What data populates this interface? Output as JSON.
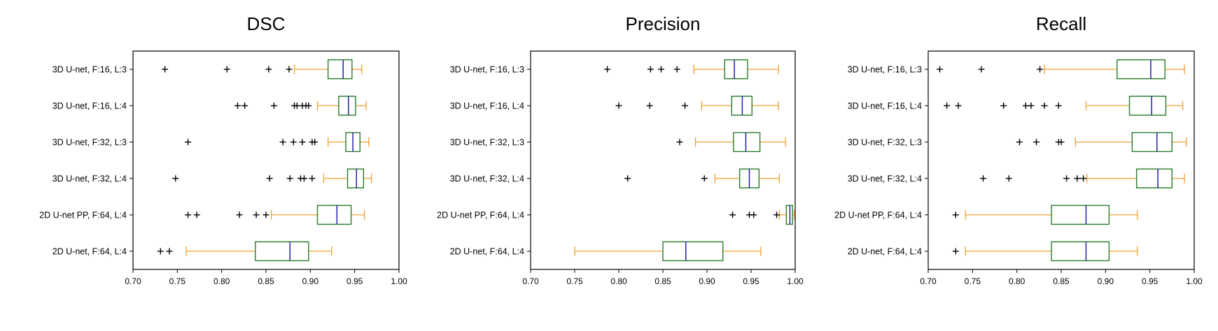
{
  "colors": {
    "box": "#2a7a2a",
    "median": "#2222a0",
    "whisker": "#f0a030",
    "axis": "#000000",
    "flier": "#000000"
  },
  "chart_data": [
    {
      "type": "boxplot",
      "orientation": "horizontal",
      "title": "DSC",
      "xlim": [
        0.7,
        1.0
      ],
      "xticks": [
        "0.70",
        "0.75",
        "0.80",
        "0.85",
        "0.90",
        "0.95",
        "1.00"
      ],
      "grid": false,
      "series": [
        {
          "name": "3D U-net, F:16, L:3",
          "whislo": 0.882,
          "q1": 0.92,
          "med": 0.937,
          "q3": 0.947,
          "whishi": 0.958,
          "fliers": [
            0.736,
            0.806,
            0.853,
            0.876
          ]
        },
        {
          "name": "3D U-net, F:16, L:4",
          "whislo": 0.908,
          "q1": 0.932,
          "med": 0.943,
          "q3": 0.951,
          "whishi": 0.963,
          "fliers": [
            0.818,
            0.826,
            0.859,
            0.882,
            0.885,
            0.891,
            0.895,
            0.898
          ]
        },
        {
          "name": "3D U-net, F:32, L:3",
          "whislo": 0.92,
          "q1": 0.94,
          "med": 0.948,
          "q3": 0.956,
          "whishi": 0.966,
          "fliers": [
            0.762,
            0.869,
            0.881,
            0.891,
            0.902,
            0.905
          ]
        },
        {
          "name": "3D U-net, F:32, L:4",
          "whislo": 0.915,
          "q1": 0.942,
          "med": 0.952,
          "q3": 0.96,
          "whishi": 0.969,
          "fliers": [
            0.748,
            0.854,
            0.877,
            0.889,
            0.893,
            0.902
          ]
        },
        {
          "name": "2D U-net PP, F:64, L:4",
          "whislo": 0.856,
          "q1": 0.908,
          "med": 0.93,
          "q3": 0.946,
          "whishi": 0.961,
          "fliers": [
            0.762,
            0.772,
            0.82,
            0.839,
            0.85
          ]
        },
        {
          "name": "2D U-net, F:64, L:4",
          "whislo": 0.76,
          "q1": 0.838,
          "med": 0.877,
          "q3": 0.898,
          "whishi": 0.924,
          "fliers": [
            0.731,
            0.741
          ]
        }
      ]
    },
    {
      "type": "boxplot",
      "orientation": "horizontal",
      "title": "Precision",
      "xlim": [
        0.7,
        1.0
      ],
      "xticks": [
        "0.70",
        "0.75",
        "0.80",
        "0.85",
        "0.90",
        "0.95",
        "1.00"
      ],
      "grid": false,
      "series": [
        {
          "name": "3D U-net, F:16, L:3",
          "whislo": 0.885,
          "q1": 0.92,
          "med": 0.931,
          "q3": 0.946,
          "whishi": 0.981,
          "fliers": [
            0.787,
            0.836,
            0.848,
            0.866
          ]
        },
        {
          "name": "3D U-net, F:16, L:4",
          "whislo": 0.894,
          "q1": 0.928,
          "med": 0.94,
          "q3": 0.951,
          "whishi": 0.981,
          "fliers": [
            0.8,
            0.835,
            0.875
          ]
        },
        {
          "name": "3D U-net, F:32, L:3",
          "whislo": 0.887,
          "q1": 0.93,
          "med": 0.944,
          "q3": 0.96,
          "whishi": 0.989,
          "fliers": [
            0.869
          ]
        },
        {
          "name": "3D U-net, F:32, L:4",
          "whislo": 0.909,
          "q1": 0.937,
          "med": 0.948,
          "q3": 0.959,
          "whishi": 0.982,
          "fliers": [
            0.81,
            0.897
          ]
        },
        {
          "name": "2D U-net PP, F:64, L:4",
          "whislo": 0.982,
          "q1": 0.99,
          "med": 0.994,
          "q3": 0.997,
          "whishi": 0.999,
          "fliers": [
            0.929,
            0.948,
            0.953,
            0.979
          ]
        },
        {
          "name": "2D U-net, F:64, L:4",
          "whislo": 0.75,
          "q1": 0.85,
          "med": 0.876,
          "q3": 0.918,
          "whishi": 0.961,
          "fliers": []
        }
      ]
    },
    {
      "type": "boxplot",
      "orientation": "horizontal",
      "title": "Recall",
      "xlim": [
        0.7,
        1.0
      ],
      "xticks": [
        "0.70",
        "0.75",
        "0.80",
        "0.85",
        "0.90",
        "0.95",
        "1.00"
      ],
      "grid": false,
      "series": [
        {
          "name": "3D U-net, F:16, L:3",
          "whislo": 0.831,
          "q1": 0.913,
          "med": 0.951,
          "q3": 0.967,
          "whishi": 0.989,
          "fliers": [
            0.713,
            0.76,
            0.826
          ]
        },
        {
          "name": "3D U-net, F:16, L:4",
          "whislo": 0.878,
          "q1": 0.927,
          "med": 0.952,
          "q3": 0.968,
          "whishi": 0.987,
          "fliers": [
            0.721,
            0.734,
            0.785,
            0.81,
            0.816,
            0.831,
            0.847
          ]
        },
        {
          "name": "3D U-net, F:32, L:3",
          "whislo": 0.866,
          "q1": 0.93,
          "med": 0.958,
          "q3": 0.975,
          "whishi": 0.991,
          "fliers": [
            0.803,
            0.822,
            0.847,
            0.85
          ]
        },
        {
          "name": "3D U-net, F:32, L:4",
          "whislo": 0.879,
          "q1": 0.935,
          "med": 0.959,
          "q3": 0.975,
          "whishi": 0.989,
          "fliers": [
            0.762,
            0.791,
            0.856,
            0.868,
            0.875
          ]
        },
        {
          "name": "2D U-net PP, F:64, L:4",
          "whislo": 0.742,
          "q1": 0.839,
          "med": 0.878,
          "q3": 0.904,
          "whishi": 0.936,
          "fliers": [
            0.731
          ]
        },
        {
          "name": "2D U-net, F:64, L:4",
          "whislo": 0.742,
          "q1": 0.839,
          "med": 0.878,
          "q3": 0.904,
          "whishi": 0.936,
          "fliers": [
            0.731
          ]
        }
      ]
    }
  ]
}
